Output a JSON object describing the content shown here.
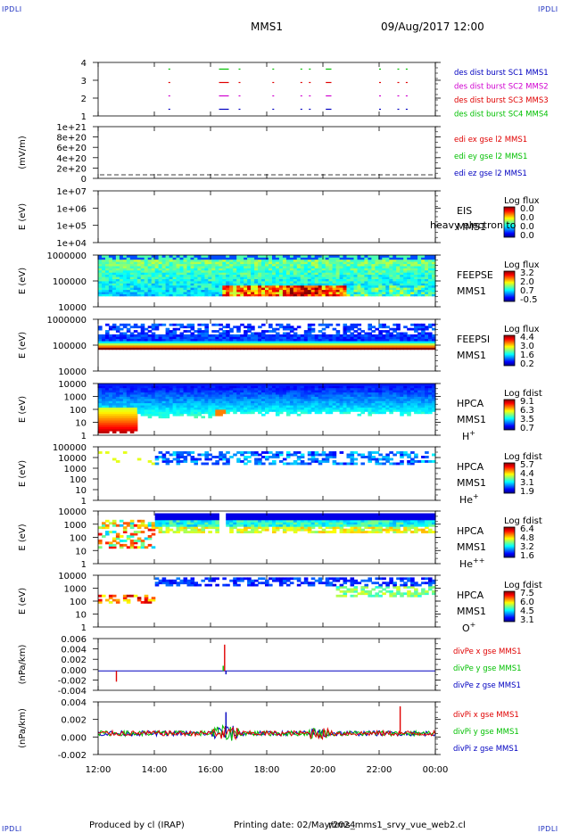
{
  "corner_labels": {
    "top_left": "IPDLI",
    "top_right": "IPDLI",
    "bottom_left": "IPDLI",
    "bottom_right": "IPDLI"
  },
  "header": {
    "mission": "MMS1",
    "datetime": "09/Aug/2017 12:00"
  },
  "footer": {
    "producer": "Produced by cl (IRAP)",
    "printing": "Printing date: 02/May/2024",
    "file": "mms_mms1_srvy_vue_web2.cl"
  },
  "colors": {
    "red": "#e00000",
    "green": "#00c000",
    "blue": "#0000c0",
    "magenta": "#d000d0",
    "black": "#000000"
  },
  "chart_data": [
    {
      "type": "line",
      "title": "",
      "yticks": [
        "4",
        "3",
        "2",
        "1"
      ],
      "ylim": [
        0.5,
        4.5
      ],
      "legend": [
        {
          "text": "des dist burst SC1 MMS1",
          "color": "#0000c0"
        },
        {
          "text": "des dist burst SC2 MMS2",
          "color": "#d000d0"
        },
        {
          "text": "des dist burst SC3 MMS3",
          "color": "#e00000"
        },
        {
          "text": "des dist burst SC4 MMS4",
          "color": "#00c000"
        }
      ],
      "segments_hours": [
        [
          14.5,
          14.55
        ],
        [
          16.3,
          16.65
        ],
        [
          17.0,
          17.05
        ],
        [
          18.2,
          18.25
        ],
        [
          19.2,
          19.25
        ],
        [
          19.5,
          19.55
        ],
        [
          20.1,
          20.3
        ],
        [
          22.0,
          22.05
        ],
        [
          22.65,
          22.7
        ],
        [
          22.95,
          23.0
        ]
      ],
      "series": [
        {
          "level": 4,
          "color": "#00c000"
        },
        {
          "level": 3,
          "color": "#e00000"
        },
        {
          "level": 2,
          "color": "#d000d0"
        },
        {
          "level": 1,
          "color": "#0000c0"
        }
      ]
    },
    {
      "type": "line",
      "ylabel": "(mV/m)",
      "yticks": [
        "1e+21",
        "8e+20",
        "6e+20",
        "4e+20",
        "2e+20",
        "0"
      ],
      "legend": [
        {
          "text": "edi ex gse l2 MMS1",
          "color": "#e00000"
        },
        {
          "text": "edi ey gse l2 MMS1",
          "color": "#00c000"
        },
        {
          "text": "edi ez gse l2 MMS1",
          "color": "#0000c0"
        }
      ],
      "values_note": "dashed zero line"
    },
    {
      "type": "heatmap",
      "ylabel": "E (eV)",
      "yticks": [
        "1e+07",
        "1e+06",
        "1e+05",
        "1e+04"
      ],
      "name": "EIS",
      "sub": "MMS1",
      "overlay": "heavy electron to",
      "colorbar_title": "Log flux",
      "colorbar_ticks": [
        "0.0",
        "0.0",
        "0.0",
        "0.0"
      ]
    },
    {
      "type": "heatmap",
      "ylabel": "E (eV)",
      "yticks": [
        "1000000",
        "100000",
        "10000"
      ],
      "name": "FEEPSE",
      "sub": "MMS1",
      "colorbar_title": "Log flux",
      "colorbar_ticks": [
        "3.2",
        "2.0",
        "0.7",
        "-0.5"
      ]
    },
    {
      "type": "heatmap",
      "ylabel": "E (eV)",
      "yticks": [
        "1000000",
        "100000",
        "10000"
      ],
      "name": "FEEPSI",
      "sub": "MMS1",
      "colorbar_title": "Log flux",
      "colorbar_ticks": [
        "4.4",
        "3.0",
        "1.6",
        "0.2"
      ]
    },
    {
      "type": "heatmap",
      "ylabel": "E (eV)",
      "yticks": [
        "10000",
        "1000",
        "100",
        "10",
        "1"
      ],
      "name": "HPCA",
      "sub": "MMS1",
      "species": "H",
      "species_sup": "+",
      "colorbar_title": "Log fdist",
      "colorbar_ticks": [
        "9.1",
        "6.3",
        "3.5",
        "0.7"
      ]
    },
    {
      "type": "heatmap",
      "ylabel": "E (eV)",
      "yticks": [
        "100000",
        "10000",
        "1000",
        "100",
        "10",
        "1"
      ],
      "name": "HPCA",
      "sub": "MMS1",
      "species": "He",
      "species_sup": "+",
      "colorbar_title": "Log fdist",
      "colorbar_ticks": [
        "5.7",
        "4.4",
        "3.1",
        "1.9"
      ]
    },
    {
      "type": "heatmap",
      "ylabel": "E (eV)",
      "yticks": [
        "10000",
        "1000",
        "100",
        "10",
        "1"
      ],
      "name": "HPCA",
      "sub": "MMS1",
      "species": "He",
      "species_sup": "++",
      "colorbar_title": "Log fdist",
      "colorbar_ticks": [
        "6.4",
        "4.8",
        "3.2",
        "1.6"
      ]
    },
    {
      "type": "heatmap",
      "ylabel": "E (eV)",
      "yticks": [
        "10000",
        "1000",
        "100",
        "10",
        "1"
      ],
      "name": "HPCA",
      "sub": "MMS1",
      "species": "O",
      "species_sup": "+",
      "colorbar_title": "Log fdist",
      "colorbar_ticks": [
        "7.5",
        "6.0",
        "4.5",
        "3.1"
      ]
    },
    {
      "type": "line",
      "ylabel": "(nPa/km)",
      "yticks": [
        "0.006",
        "0.004",
        "0.002",
        "0.000",
        "-0.002",
        "-0.004"
      ],
      "ylim": [
        -0.0045,
        0.0075
      ],
      "legend": [
        {
          "text": "divPe x gse MMS1",
          "color": "#e00000"
        },
        {
          "text": "divPe y gse MMS1",
          "color": "#00c000"
        },
        {
          "text": "divPe z gse MMS1",
          "color": "#0000c0"
        }
      ],
      "spikes": [
        {
          "hour": 12.65,
          "value": -0.0025,
          "color": "#e00000"
        },
        {
          "hour": 16.5,
          "value": 0.0061,
          "color": "#e00000"
        },
        {
          "hour": 16.45,
          "value": 0.0012,
          "color": "#00c000"
        },
        {
          "hour": 16.55,
          "value": -0.0008,
          "color": "#0000c0"
        }
      ]
    },
    {
      "type": "line",
      "ylabel": "(nPa/km)",
      "yticks": [
        "0.004",
        "0.002",
        "0.000",
        "-0.002"
      ],
      "ylim": [
        -0.0033,
        0.0049
      ],
      "legend": [
        {
          "text": "divPi x gse MMS1",
          "color": "#e00000"
        },
        {
          "text": "divPi y gse MMS1",
          "color": "#00c000"
        },
        {
          "text": "divPi z gse MMS1",
          "color": "#0000c0"
        }
      ],
      "spikes": [
        {
          "hour": 16.55,
          "value": 0.0033,
          "color": "#0000c0"
        },
        {
          "hour": 22.75,
          "value": 0.0042,
          "color": "#e00000"
        }
      ]
    }
  ],
  "x_axis": {
    "ticks": [
      "12:00",
      "14:00",
      "16:00",
      "18:00",
      "20:00",
      "22:00",
      "00:00"
    ],
    "start_hour": 12,
    "end_hour": 24
  }
}
